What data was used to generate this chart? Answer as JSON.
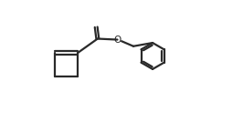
{
  "background_color": "#ffffff",
  "line_color": "#2a2a2a",
  "line_width": 1.6,
  "fig_width": 2.66,
  "fig_height": 1.34,
  "dpi": 100,
  "xlim": [
    0,
    10
  ],
  "ylim": [
    0,
    5
  ],
  "O_fontsize": 7.5,
  "O_label": "O"
}
